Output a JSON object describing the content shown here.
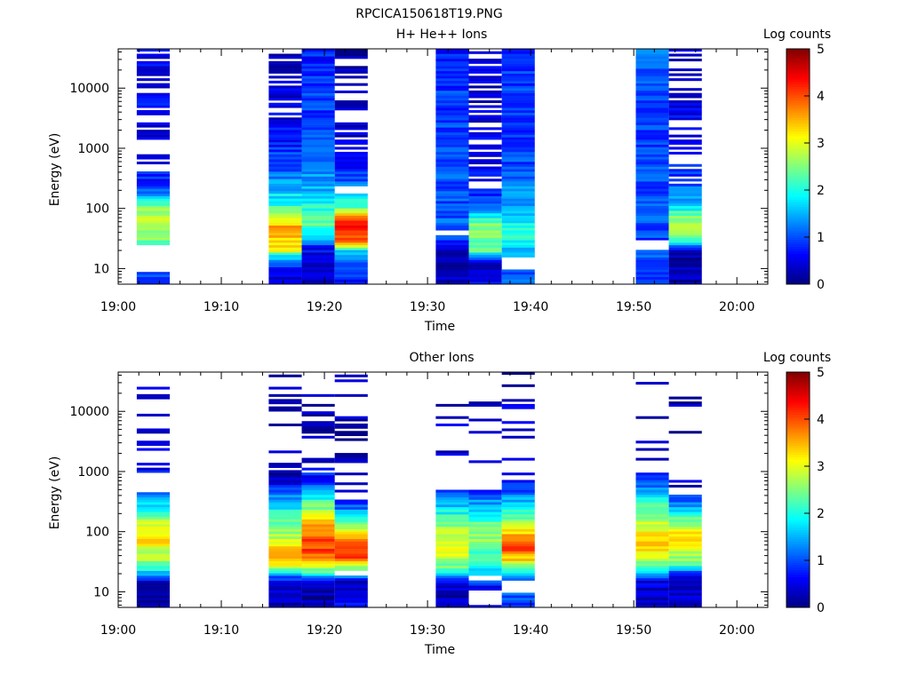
{
  "figure_title": "RPCICA150618T19.PNG",
  "chart_data": [
    {
      "type": "heatmap",
      "title": "H+ He++ Ions",
      "xlabel": "Time",
      "ylabel": "Energy (eV)",
      "x_ticks": [
        "19:00",
        "19:10",
        "19:20",
        "19:30",
        "19:40",
        "19:50",
        "20:00"
      ],
      "xlim_minutes": [
        0,
        63
      ],
      "y_ticks": [
        "10",
        "100",
        "1000",
        "10000"
      ],
      "ylim_eV": [
        5.5,
        45000
      ],
      "y_scale": "log",
      "colorbar": {
        "label": "Log counts",
        "ticks": [
          "0",
          "1",
          "2",
          "3",
          "4",
          "5"
        ],
        "range": [
          0,
          5
        ],
        "colormap": "jet"
      },
      "columns": [
        {
          "t_start": 1.8,
          "t_end": 5.0,
          "profile": [
            [
              9,
              1.0
            ],
            [
              20,
              null
            ],
            [
              25,
              2.4
            ],
            [
              35,
              2.6
            ],
            [
              60,
              2.9
            ],
            [
              100,
              2.5
            ],
            [
              160,
              1.4
            ],
            [
              300,
              0.8
            ],
            [
              1000,
              0.5
            ],
            [
              5000,
              0.6
            ],
            [
              40000,
              0.5
            ]
          ],
          "gaps": [
            [
              12,
              20
            ]
          ],
          "sparse_above": 400,
          "sparse_keep": 0.45
        },
        {
          "t_start": 14.6,
          "t_end": 17.8,
          "profile": [
            [
              6,
              0.4
            ],
            [
              10,
              0.6
            ],
            [
              16,
              1.6
            ],
            [
              20,
              3.3
            ],
            [
              30,
              3.4
            ],
            [
              50,
              3.6
            ],
            [
              70,
              2.8
            ],
            [
              100,
              2.2
            ],
            [
              200,
              1.6
            ],
            [
              500,
              1.0
            ],
            [
              2000,
              0.6
            ],
            [
              10000,
              0.5
            ],
            [
              40000,
              0.3
            ]
          ],
          "gaps": [],
          "sparse_above": 3000,
          "sparse_keep": 0.75
        },
        {
          "t_start": 17.8,
          "t_end": 21.0,
          "profile": [
            [
              6,
              0.2
            ],
            [
              12,
              0.3
            ],
            [
              22,
              0.6
            ],
            [
              30,
              1.4
            ],
            [
              50,
              2.3
            ],
            [
              70,
              2.4
            ],
            [
              120,
              1.9
            ],
            [
              200,
              1.5
            ],
            [
              500,
              1.2
            ],
            [
              3000,
              0.9
            ],
            [
              40000,
              0.8
            ]
          ],
          "gaps": [],
          "sparse_above": 100000,
          "sparse_keep": 1.0
        },
        {
          "t_start": 21.0,
          "t_end": 24.2,
          "profile": [
            [
              6,
              0.8
            ],
            [
              10,
              0.9
            ],
            [
              20,
              1.5
            ],
            [
              28,
              4.1
            ],
            [
              60,
              4.2
            ],
            [
              80,
              3.2
            ],
            [
              110,
              2.2
            ],
            [
              200,
              1.4
            ],
            [
              500,
              0.7
            ],
            [
              2000,
              0.3
            ],
            [
              40000,
              0.2
            ]
          ],
          "gaps": [
            [
              180,
              230
            ]
          ],
          "sparse_above": 700,
          "sparse_keep": 0.6
        },
        {
          "t_start": 30.8,
          "t_end": 34.0,
          "profile": [
            [
              6,
              0.4
            ],
            [
              12,
              0.3
            ],
            [
              20,
              0.4
            ],
            [
              30,
              0.9
            ],
            [
              60,
              1.1
            ],
            [
              200,
              1.0
            ],
            [
              1000,
              0.9
            ],
            [
              10000,
              0.9
            ],
            [
              40000,
              0.8
            ]
          ],
          "gaps": [
            [
              37,
              43
            ]
          ],
          "sparse_above": 100000,
          "sparse_keep": 1.0
        },
        {
          "t_start": 34.0,
          "t_end": 37.2,
          "profile": [
            [
              6,
              0.6
            ],
            [
              12,
              0.4
            ],
            [
              20,
              2.3
            ],
            [
              50,
              2.6
            ],
            [
              80,
              1.7
            ],
            [
              120,
              1.1
            ],
            [
              300,
              0.6
            ],
            [
              1000,
              0.5
            ],
            [
              40000,
              0.4
            ]
          ],
          "gaps": [],
          "sparse_above": 180,
          "sparse_keep": 0.6
        },
        {
          "t_start": 37.2,
          "t_end": 40.4,
          "profile": [
            [
              6,
              1.0
            ],
            [
              9,
              1.0
            ],
            [
              20,
              1.6
            ],
            [
              40,
              2.1
            ],
            [
              70,
              1.7
            ],
            [
              150,
              1.4
            ],
            [
              500,
              1.0
            ],
            [
              3000,
              0.9
            ],
            [
              40000,
              0.9
            ]
          ],
          "gaps": [
            [
              10,
              15
            ]
          ],
          "sparse_above": 100000,
          "sparse_keep": 1.0
        },
        {
          "t_start": 50.2,
          "t_end": 53.4,
          "profile": [
            [
              6,
              1.0
            ],
            [
              20,
              1.0
            ],
            [
              32,
              0.9
            ],
            [
              60,
              1.1
            ],
            [
              200,
              1.0
            ],
            [
              1000,
              0.9
            ],
            [
              10000,
              0.9
            ],
            [
              40000,
              1.1
            ]
          ],
          "gaps": [
            [
              21,
              31
            ]
          ],
          "sparse_above": 100000,
          "sparse_keep": 1.0
        },
        {
          "t_start": 53.4,
          "t_end": 56.6,
          "profile": [
            [
              6,
              0.3
            ],
            [
              20,
              0.2
            ],
            [
              30,
              2.2
            ],
            [
              50,
              2.9
            ],
            [
              80,
              2.4
            ],
            [
              120,
              1.5
            ],
            [
              300,
              0.9
            ],
            [
              1000,
              0.6
            ],
            [
              40000,
              0.4
            ]
          ],
          "gaps": [],
          "sparse_above": 250,
          "sparse_keep": 0.6
        }
      ]
    },
    {
      "type": "heatmap",
      "title": "Other Ions",
      "xlabel": "Time",
      "ylabel": "Energy (eV)",
      "x_ticks": [
        "19:00",
        "19:10",
        "19:20",
        "19:30",
        "19:40",
        "19:50",
        "20:00"
      ],
      "xlim_minutes": [
        0,
        63
      ],
      "y_ticks": [
        "10",
        "100",
        "1000",
        "10000"
      ],
      "ylim_eV": [
        5.5,
        45000
      ],
      "y_scale": "log",
      "colorbar": {
        "label": "Log counts",
        "ticks": [
          "0",
          "1",
          "2",
          "3",
          "4",
          "5"
        ],
        "range": [
          0,
          5
        ],
        "colormap": "jet"
      },
      "columns": [
        {
          "t_start": 1.8,
          "t_end": 5.0,
          "profile": [
            [
              15,
              0.3
            ],
            [
              20,
              1.5
            ],
            [
              30,
              2.5
            ],
            [
              70,
              3.3
            ],
            [
              150,
              2.8
            ],
            [
              300,
              1.6
            ],
            [
              500,
              0.8
            ],
            [
              2000,
              0.4
            ]
          ],
          "gaps": [],
          "sparse_above": 450,
          "sparse_keep": 0.3
        },
        {
          "t_start": 14.6,
          "t_end": 17.8,
          "profile": [
            [
              6,
              0.3
            ],
            [
              12,
              0.4
            ],
            [
              18,
              1.0
            ],
            [
              30,
              3.3
            ],
            [
              50,
              3.6
            ],
            [
              80,
              2.8
            ],
            [
              150,
              2.3
            ],
            [
              300,
              1.6
            ],
            [
              800,
              0.3
            ]
          ],
          "gaps": [],
          "sparse_above": 900,
          "sparse_keep": 0.2
        },
        {
          "t_start": 17.8,
          "t_end": 21.0,
          "profile": [
            [
              6,
              0.2
            ],
            [
              15,
              0.3
            ],
            [
              20,
              2.0
            ],
            [
              30,
              3.4
            ],
            [
              50,
              4.1
            ],
            [
              80,
              4.0
            ],
            [
              150,
              3.3
            ],
            [
              300,
              2.2
            ],
            [
              600,
              1.0
            ],
            [
              1500,
              0.3
            ]
          ],
          "gaps": [],
          "sparse_above": 900,
          "sparse_keep": 0.25
        },
        {
          "t_start": 21.0,
          "t_end": 24.2,
          "profile": [
            [
              6,
              0.8
            ],
            [
              10,
              0.5
            ],
            [
              15,
              0.3
            ],
            [
              25,
              2.6
            ],
            [
              40,
              4.2
            ],
            [
              60,
              4.0
            ],
            [
              90,
              3.3
            ],
            [
              150,
              2.2
            ],
            [
              300,
              0.8
            ],
            [
              800,
              0.3
            ]
          ],
          "gaps": [
            [
              18,
              22
            ]
          ],
          "sparse_above": 350,
          "sparse_keep": 0.4
        },
        {
          "t_start": 30.8,
          "t_end": 34.0,
          "profile": [
            [
              6,
              0.2
            ],
            [
              15,
              0.5
            ],
            [
              25,
              2.3
            ],
            [
              50,
              3.0
            ],
            [
              100,
              2.7
            ],
            [
              200,
              2.0
            ],
            [
              400,
              1.2
            ],
            [
              1000,
              0.5
            ],
            [
              30000,
              0.3
            ]
          ],
          "gaps": [],
          "sparse_above": 500,
          "sparse_keep": 0.15
        },
        {
          "t_start": 34.0,
          "t_end": 37.2,
          "profile": [
            [
              12,
              0.6
            ],
            [
              20,
              1.6
            ],
            [
              40,
              2.2
            ],
            [
              80,
              2.6
            ],
            [
              150,
              2.2
            ],
            [
              300,
              1.4
            ],
            [
              600,
              0.5
            ],
            [
              15000,
              0.3
            ]
          ],
          "gaps": [
            [
              6,
              11
            ],
            [
              15,
              19
            ]
          ],
          "sparse_above": 500,
          "sparse_keep": 0.1
        },
        {
          "t_start": 37.2,
          "t_end": 40.4,
          "profile": [
            [
              6,
              1.0
            ],
            [
              9,
              1.0
            ],
            [
              20,
              1.5
            ],
            [
              30,
              3.0
            ],
            [
              50,
              4.0
            ],
            [
              80,
              3.6
            ],
            [
              150,
              2.6
            ],
            [
              300,
              1.6
            ],
            [
              700,
              0.6
            ],
            [
              40000,
              0.3
            ]
          ],
          "gaps": [
            [
              10,
              15
            ]
          ],
          "sparse_above": 700,
          "sparse_keep": 0.15
        },
        {
          "t_start": 50.2,
          "t_end": 53.4,
          "profile": [
            [
              6,
              0.2
            ],
            [
              15,
              0.5
            ],
            [
              20,
              1.5
            ],
            [
              40,
              3.0
            ],
            [
              80,
              3.4
            ],
            [
              150,
              2.8
            ],
            [
              400,
              1.8
            ],
            [
              800,
              0.8
            ],
            [
              2000,
              0.5
            ],
            [
              40000,
              0.3
            ]
          ],
          "gaps": [],
          "sparse_above": 900,
          "sparse_keep": 0.2
        },
        {
          "t_start": 53.4,
          "t_end": 56.6,
          "profile": [
            [
              15,
              0.3
            ],
            [
              20,
              0.6
            ],
            [
              30,
              2.4
            ],
            [
              80,
              3.3
            ],
            [
              150,
              2.6
            ],
            [
              250,
              1.5
            ],
            [
              450,
              0.6
            ],
            [
              800,
              0.3
            ]
          ],
          "gaps": [],
          "sparse_above": 420,
          "sparse_keep": 0.1
        }
      ]
    }
  ]
}
